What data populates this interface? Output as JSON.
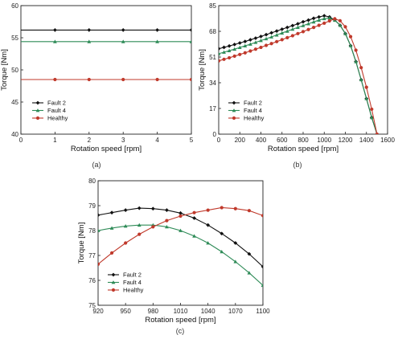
{
  "colors": {
    "Fault 2": "#111111",
    "Fault 4": "#2e8b57",
    "Healthy": "#c0392b"
  },
  "chart_data": [
    {
      "type": "line",
      "caption": "(a)",
      "xlabel": "Rotation speed [rpm]",
      "ylabel": "Torque [Nm]",
      "xlim": [
        0,
        5
      ],
      "ylim": [
        40,
        60
      ],
      "xticks": [
        0,
        1,
        2,
        3,
        4,
        5
      ],
      "yticks": [
        40,
        45,
        50,
        55,
        60
      ],
      "legend_position": "lower-left",
      "marker_x": [
        1,
        2,
        3,
        4,
        5
      ],
      "series": [
        {
          "name": "Fault 2",
          "marker": "diamond",
          "x": [
            0,
            1,
            2,
            3,
            4,
            5
          ],
          "y": [
            56.2,
            56.2,
            56.2,
            56.2,
            56.2,
            56.2
          ]
        },
        {
          "name": "Fault 4",
          "marker": "triangle",
          "x": [
            0,
            1,
            2,
            3,
            4,
            5
          ],
          "y": [
            54.4,
            54.4,
            54.4,
            54.4,
            54.4,
            54.4
          ]
        },
        {
          "name": "Healthy",
          "marker": "circle",
          "x": [
            0,
            1,
            2,
            3,
            4,
            5
          ],
          "y": [
            48.5,
            48.5,
            48.5,
            48.5,
            48.5,
            48.5
          ]
        }
      ]
    },
    {
      "type": "line",
      "caption": "(b)",
      "xlabel": "Rotation speed [rpm]",
      "ylabel": "Torque [Nm]",
      "xlim": [
        0,
        1600
      ],
      "ylim": [
        0,
        85
      ],
      "xticks": [
        0,
        200,
        400,
        600,
        800,
        1000,
        1200,
        1400,
        1600
      ],
      "yticks": [
        0,
        17,
        34,
        51,
        68,
        85
      ],
      "legend_position": "lower-left",
      "series": [
        {
          "name": "Fault 2",
          "marker": "diamond",
          "x": [
            0,
            50,
            100,
            150,
            200,
            250,
            300,
            350,
            400,
            450,
            500,
            550,
            600,
            650,
            700,
            750,
            800,
            850,
            900,
            950,
            1000,
            1050,
            1100,
            1150,
            1200,
            1250,
            1300,
            1350,
            1400,
            1450,
            1500
          ],
          "y": [
            56.5,
            57.4,
            58.3,
            59.3,
            60.3,
            61.3,
            62.4,
            63.5,
            64.6,
            65.8,
            67.0,
            68.2,
            69.4,
            70.6,
            71.8,
            73.0,
            74.3,
            75.4,
            76.6,
            77.5,
            78.3,
            77.5,
            75.5,
            72.0,
            66.5,
            58.5,
            48.0,
            36.0,
            23.5,
            11.0,
            0.0
          ]
        },
        {
          "name": "Fault 4",
          "marker": "triangle",
          "x": [
            0,
            50,
            100,
            150,
            200,
            250,
            300,
            350,
            400,
            450,
            500,
            550,
            600,
            650,
            700,
            750,
            800,
            850,
            900,
            950,
            1000,
            1050,
            1100,
            1150,
            1200,
            1250,
            1300,
            1350,
            1400,
            1450,
            1500
          ],
          "y": [
            53.2,
            54.2,
            55.2,
            56.2,
            57.3,
            58.4,
            59.5,
            60.7,
            61.9,
            63.1,
            64.3,
            65.6,
            66.9,
            68.1,
            69.4,
            70.6,
            71.8,
            73.0,
            74.2,
            75.4,
            76.4,
            76.8,
            75.3,
            72.0,
            66.5,
            58.5,
            48.0,
            36.0,
            23.5,
            11.0,
            0.0
          ]
        },
        {
          "name": "Healthy",
          "marker": "circle",
          "x": [
            0,
            50,
            100,
            150,
            200,
            250,
            300,
            350,
            400,
            450,
            500,
            550,
            600,
            650,
            700,
            750,
            800,
            850,
            900,
            950,
            1000,
            1050,
            1100,
            1150,
            1200,
            1250,
            1300,
            1350,
            1400,
            1450,
            1500
          ],
          "y": [
            48.5,
            49.5,
            50.5,
            51.6,
            52.7,
            53.8,
            55.0,
            56.2,
            57.4,
            58.7,
            59.9,
            61.2,
            62.5,
            63.8,
            65.1,
            66.5,
            67.8,
            69.2,
            70.6,
            72.0,
            73.4,
            74.9,
            76.3,
            75.0,
            71.0,
            64.5,
            55.5,
            44.0,
            31.0,
            16.5,
            0.0
          ]
        }
      ]
    },
    {
      "type": "line",
      "caption": "(c)",
      "xlabel": "Rotation speed [rpm]",
      "ylabel": "Torque [Nm]",
      "xlim": [
        920,
        1100
      ],
      "ylim": [
        75,
        80
      ],
      "xticks": [
        920,
        950,
        980,
        1010,
        1040,
        1070,
        1100
      ],
      "yticks": [
        75,
        76,
        77,
        78,
        79,
        80
      ],
      "legend_position": "lower-left",
      "series": [
        {
          "name": "Fault 2",
          "marker": "diamond",
          "x": [
            920,
            935,
            950,
            965,
            980,
            995,
            1010,
            1025,
            1040,
            1055,
            1070,
            1085,
            1100
          ],
          "y": [
            78.62,
            78.72,
            78.82,
            78.9,
            78.88,
            78.82,
            78.7,
            78.5,
            78.22,
            77.88,
            77.5,
            77.06,
            76.55
          ]
        },
        {
          "name": "Fault 4",
          "marker": "triangle",
          "x": [
            920,
            935,
            950,
            965,
            980,
            995,
            1010,
            1025,
            1040,
            1055,
            1070,
            1085,
            1100
          ],
          "y": [
            78.0,
            78.1,
            78.18,
            78.22,
            78.22,
            78.15,
            78.0,
            77.78,
            77.5,
            77.15,
            76.75,
            76.3,
            75.8
          ]
        },
        {
          "name": "Healthy",
          "marker": "circle",
          "x": [
            920,
            935,
            950,
            965,
            980,
            995,
            1010,
            1025,
            1040,
            1055,
            1070,
            1085,
            1100
          ],
          "y": [
            76.65,
            77.1,
            77.5,
            77.85,
            78.15,
            78.4,
            78.58,
            78.72,
            78.82,
            78.92,
            78.88,
            78.8,
            78.6
          ]
        }
      ]
    }
  ]
}
